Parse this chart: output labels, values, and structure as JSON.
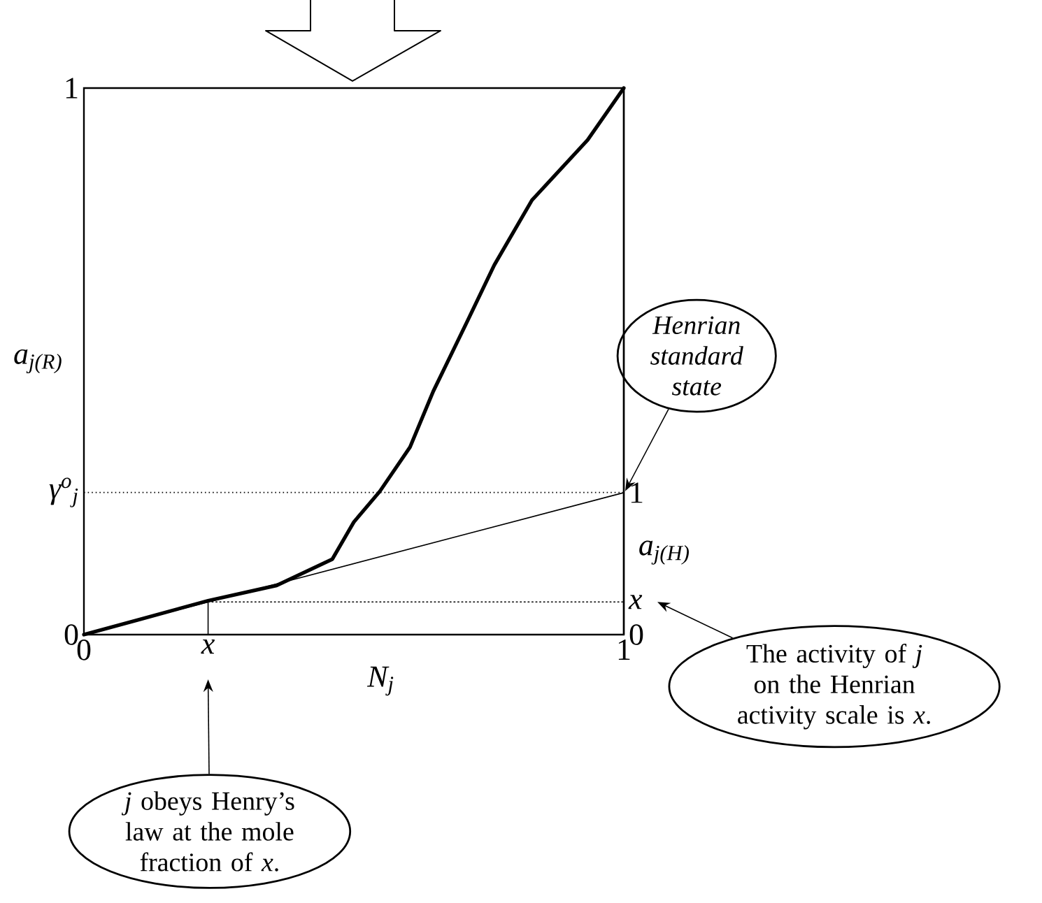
{
  "chart_data": {
    "type": "line",
    "xlabel": "N$_{j}$",
    "ylabel": "a$_{j(R)}$",
    "y2label": "a$_{j(H)}$",
    "xlim": [
      0,
      1
    ],
    "ylim": [
      0,
      1
    ],
    "y2lim": [
      0,
      3.85
    ],
    "xticks": [
      0,
      {
        "value": 0.23,
        "label": "x"
      },
      1
    ],
    "yticks": [
      0,
      {
        "value": 0.26,
        "label": "γ$^{o}$$_{j}$"
      },
      1
    ],
    "y2ticks": [
      0,
      {
        "value": 0.23,
        "label": "x"
      },
      1
    ],
    "series": [
      {
        "color": "#000000",
        "x": [
          0,
          0.1,
          0.23,
          0.357,
          0.46,
          0.5,
          0.548,
          0.604,
          0.647,
          0.71,
          0.76,
          0.83,
          0.933,
          1
        ],
        "values": [
          0,
          0.027,
          0.062,
          0.09,
          0.138,
          0.206,
          0.262,
          0.343,
          0.445,
          0.573,
          0.676,
          0.795,
          0.905,
          1
        ]
      },
      {
        "color": "#000000",
        "axis": "y2",
        "x": [
          0,
          1
        ],
        "values": [
          0,
          1
        ]
      },
      {
        "color": "#000000",
        "axis": "y2",
        "line_style": "dotted",
        "x": [
          0.23,
          1
        ],
        "values": [
          0.23,
          0.23
        ]
      },
      {
        "color": "#000000",
        "axis": "y2",
        "x": [
          0.23,
          0.23
        ],
        "values": [
          0,
          0.23
        ]
      }
    ],
    "ref_lines": [
      {
        "axis": "y",
        "value": 0.26,
        "line_style": "dotted"
      }
    ],
    "annotations": [
      "Henrian standard state",
      "The activity of *j* on the Henrian activity scale is *x*.",
      "*j* obeys Henry’s law at the mole fraction of *x*."
    ]
  }
}
